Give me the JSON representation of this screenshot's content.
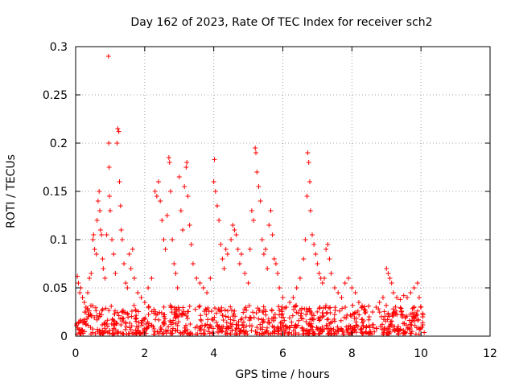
{
  "chart_data": {
    "type": "scatter",
    "title": "Day 162 of 2023, Rate Of TEC Index for receiver sch2",
    "xlabel": "GPS time / hours",
    "ylabel": "ROTI / TECUs",
    "xlim": [
      0,
      12
    ],
    "ylim": [
      0,
      0.3
    ],
    "xticks": [
      "0",
      "2",
      "4",
      "6",
      "8",
      "10",
      "12"
    ],
    "yticks": [
      "0",
      "0.05",
      "0.1",
      "0.15",
      "0.2",
      "0.25",
      "0.3"
    ],
    "grid": true,
    "marker": "plus",
    "color": "#ff0000",
    "points": [
      [
        0.05,
        0.062
      ],
      [
        0.08,
        0.055
      ],
      [
        0.12,
        0.045
      ],
      [
        0.15,
        0.05
      ],
      [
        0.2,
        0.04
      ],
      [
        0.25,
        0.035
      ],
      [
        0.3,
        0.03
      ],
      [
        0.35,
        0.045
      ],
      [
        0.4,
        0.06
      ],
      [
        0.45,
        0.065
      ],
      [
        0.5,
        0.1
      ],
      [
        0.52,
        0.105
      ],
      [
        0.55,
        0.09
      ],
      [
        0.6,
        0.085
      ],
      [
        0.62,
        0.12
      ],
      [
        0.65,
        0.14
      ],
      [
        0.68,
        0.15
      ],
      [
        0.7,
        0.13
      ],
      [
        0.72,
        0.11
      ],
      [
        0.75,
        0.105
      ],
      [
        0.78,
        0.08
      ],
      [
        0.8,
        0.07
      ],
      [
        0.85,
        0.06
      ],
      [
        0.9,
        0.105
      ],
      [
        0.95,
        0.29
      ],
      [
        0.96,
        0.2
      ],
      [
        0.97,
        0.175
      ],
      [
        0.98,
        0.145
      ],
      [
        1.0,
        0.13
      ],
      [
        1.05,
        0.1
      ],
      [
        1.1,
        0.085
      ],
      [
        1.15,
        0.065
      ],
      [
        1.2,
        0.2
      ],
      [
        1.22,
        0.215
      ],
      [
        1.25,
        0.212
      ],
      [
        1.27,
        0.16
      ],
      [
        1.3,
        0.135
      ],
      [
        1.32,
        0.11
      ],
      [
        1.35,
        0.1
      ],
      [
        1.4,
        0.075
      ],
      [
        1.45,
        0.055
      ],
      [
        1.5,
        0.05
      ],
      [
        1.55,
        0.085
      ],
      [
        1.6,
        0.07
      ],
      [
        1.65,
        0.09
      ],
      [
        1.7,
        0.06
      ],
      [
        1.8,
        0.045
      ],
      [
        1.9,
        0.04
      ],
      [
        2.0,
        0.035
      ],
      [
        2.1,
        0.05
      ],
      [
        2.2,
        0.06
      ],
      [
        2.3,
        0.15
      ],
      [
        2.35,
        0.145
      ],
      [
        2.4,
        0.16
      ],
      [
        2.45,
        0.14
      ],
      [
        2.5,
        0.12
      ],
      [
        2.55,
        0.1
      ],
      [
        2.6,
        0.09
      ],
      [
        2.65,
        0.125
      ],
      [
        2.7,
        0.185
      ],
      [
        2.72,
        0.18
      ],
      [
        2.75,
        0.15
      ],
      [
        2.8,
        0.1
      ],
      [
        2.85,
        0.075
      ],
      [
        2.9,
        0.065
      ],
      [
        2.95,
        0.05
      ],
      [
        3.0,
        0.165
      ],
      [
        3.05,
        0.13
      ],
      [
        3.1,
        0.11
      ],
      [
        3.15,
        0.155
      ],
      [
        3.2,
        0.175
      ],
      [
        3.22,
        0.18
      ],
      [
        3.25,
        0.145
      ],
      [
        3.3,
        0.115
      ],
      [
        3.35,
        0.095
      ],
      [
        3.4,
        0.075
      ],
      [
        3.5,
        0.06
      ],
      [
        3.6,
        0.055
      ],
      [
        3.7,
        0.05
      ],
      [
        3.8,
        0.045
      ],
      [
        3.9,
        0.06
      ],
      [
        4.0,
        0.16
      ],
      [
        4.02,
        0.183
      ],
      [
        4.05,
        0.15
      ],
      [
        4.1,
        0.135
      ],
      [
        4.15,
        0.12
      ],
      [
        4.2,
        0.095
      ],
      [
        4.25,
        0.08
      ],
      [
        4.3,
        0.07
      ],
      [
        4.35,
        0.09
      ],
      [
        4.4,
        0.085
      ],
      [
        4.5,
        0.1
      ],
      [
        4.55,
        0.115
      ],
      [
        4.6,
        0.11
      ],
      [
        4.65,
        0.105
      ],
      [
        4.7,
        0.09
      ],
      [
        4.75,
        0.075
      ],
      [
        4.8,
        0.085
      ],
      [
        4.9,
        0.065
      ],
      [
        5.0,
        0.055
      ],
      [
        5.05,
        0.09
      ],
      [
        5.1,
        0.13
      ],
      [
        5.15,
        0.12
      ],
      [
        5.2,
        0.195
      ],
      [
        5.22,
        0.19
      ],
      [
        5.25,
        0.17
      ],
      [
        5.3,
        0.155
      ],
      [
        5.35,
        0.14
      ],
      [
        5.4,
        0.1
      ],
      [
        5.45,
        0.085
      ],
      [
        5.5,
        0.09
      ],
      [
        5.55,
        0.07
      ],
      [
        5.6,
        0.115
      ],
      [
        5.65,
        0.13
      ],
      [
        5.7,
        0.105
      ],
      [
        5.75,
        0.08
      ],
      [
        5.8,
        0.075
      ],
      [
        5.85,
        0.065
      ],
      [
        5.9,
        0.05
      ],
      [
        6.0,
        0.04
      ],
      [
        6.1,
        0.03
      ],
      [
        6.2,
        0.035
      ],
      [
        6.3,
        0.04
      ],
      [
        6.4,
        0.05
      ],
      [
        6.5,
        0.06
      ],
      [
        6.6,
        0.08
      ],
      [
        6.65,
        0.1
      ],
      [
        6.7,
        0.145
      ],
      [
        6.72,
        0.19
      ],
      [
        6.75,
        0.18
      ],
      [
        6.78,
        0.16
      ],
      [
        6.8,
        0.13
      ],
      [
        6.85,
        0.105
      ],
      [
        6.9,
        0.095
      ],
      [
        6.95,
        0.085
      ],
      [
        7.0,
        0.075
      ],
      [
        7.05,
        0.065
      ],
      [
        7.1,
        0.06
      ],
      [
        7.15,
        0.055
      ],
      [
        7.2,
        0.06
      ],
      [
        7.25,
        0.09
      ],
      [
        7.3,
        0.095
      ],
      [
        7.35,
        0.08
      ],
      [
        7.4,
        0.065
      ],
      [
        7.5,
        0.05
      ],
      [
        7.6,
        0.045
      ],
      [
        7.7,
        0.04
      ],
      [
        7.8,
        0.055
      ],
      [
        7.9,
        0.06
      ],
      [
        8.0,
        0.05
      ],
      [
        8.1,
        0.045
      ],
      [
        8.2,
        0.035
      ],
      [
        8.3,
        0.03
      ],
      [
        8.4,
        0.025
      ],
      [
        8.5,
        0.02
      ],
      [
        8.6,
        0.025
      ],
      [
        8.7,
        0.03
      ],
      [
        8.8,
        0.035
      ],
      [
        8.9,
        0.04
      ],
      [
        9.0,
        0.07
      ],
      [
        9.05,
        0.065
      ],
      [
        9.1,
        0.06
      ],
      [
        9.15,
        0.055
      ],
      [
        9.2,
        0.045
      ],
      [
        9.3,
        0.04
      ],
      [
        9.4,
        0.038
      ],
      [
        9.5,
        0.042
      ],
      [
        9.6,
        0.04
      ],
      [
        9.7,
        0.045
      ],
      [
        9.8,
        0.05
      ],
      [
        9.9,
        0.055
      ],
      [
        9.95,
        0.04
      ],
      [
        10.0,
        0.03
      ],
      [
        10.05,
        0.02
      ]
    ],
    "baseline_band": {
      "x_start": 0,
      "x_end": 10.1,
      "y_min": 0.002,
      "y_max": 0.032,
      "count": 900
    }
  }
}
